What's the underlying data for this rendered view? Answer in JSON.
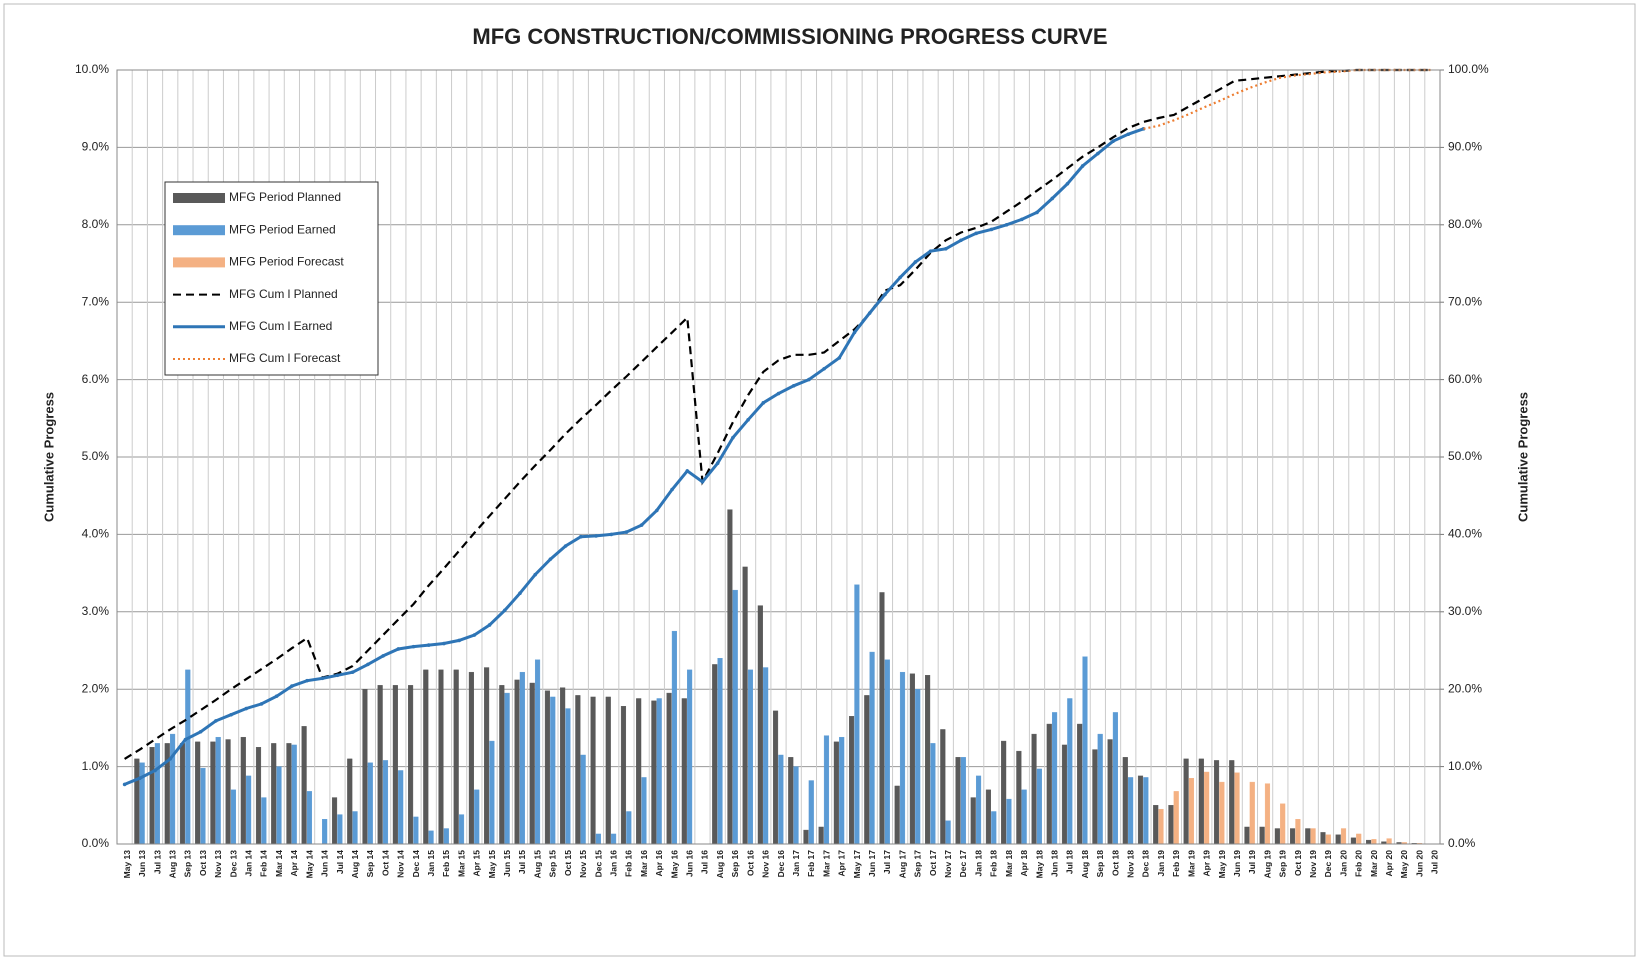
{
  "chart_data": {
    "type": "combo",
    "title": "MFG CONSTRUCTION/COMMISSIONING PROGRESS CURVE",
    "ylabel": "Cumulative Progress",
    "y2label": "Cumulative Progress",
    "grid": true,
    "legend_position": "upper left",
    "categories": [
      "May 13",
      "Jun 13",
      "Jul 13",
      "Aug 13",
      "Sep 13",
      "Oct 13",
      "Nov 13",
      "Dec 13",
      "Jan 14",
      "Feb 14",
      "Mar 14",
      "Apr 14",
      "May 14",
      "Jun 14",
      "Jul 14",
      "Aug 14",
      "Sep 14",
      "Oct 14",
      "Nov 14",
      "Dec 14",
      "Jan 15",
      "Feb 15",
      "Mar 15",
      "Apr 15",
      "May 15",
      "Jun 15",
      "Jul 15",
      "Aug 15",
      "Sep 15",
      "Oct 15",
      "Nov 15",
      "Dec 15",
      "Jan 16",
      "Feb 16",
      "Mar 16",
      "Apr 16",
      "May 16",
      "Jun 16",
      "Jul 16",
      "Aug 16",
      "Sep 16",
      "Oct 16",
      "Nov 16",
      "Dec 16",
      "Jan 17",
      "Feb 17",
      "Mar 17",
      "Apr 17",
      "May 17",
      "Jun 17",
      "Jul 17",
      "Aug 17",
      "Sep 17",
      "Oct 17",
      "Nov 17",
      "Dec 17",
      "Jan 18",
      "Feb 18",
      "Mar 18",
      "Apr 18",
      "May 18",
      "Jun 18",
      "Jul 18",
      "Aug 18",
      "Sep 18",
      "Oct 18",
      "Nov 18",
      "Dec 18",
      "Jan 19",
      "Feb 19",
      "Mar 19",
      "Apr 19",
      "May 19",
      "Jun 19",
      "Jul 19",
      "Aug 19",
      "Sep 19",
      "Oct 19",
      "Nov 19",
      "Dec 19",
      "Jan 20",
      "Feb 20",
      "Mar 20",
      "Apr 20",
      "May 20",
      "Jun 20",
      "Jul 20"
    ],
    "ylim": [
      0,
      10
    ],
    "yticks": [
      {
        "value": 0,
        "label": "0.0%"
      },
      {
        "value": 1,
        "label": "1.0%"
      },
      {
        "value": 2,
        "label": "2.0%"
      },
      {
        "value": 3,
        "label": "3.0%"
      },
      {
        "value": 4,
        "label": "4.0%"
      },
      {
        "value": 5,
        "label": "5.0%"
      },
      {
        "value": 6,
        "label": "6.0%"
      },
      {
        "value": 7,
        "label": "7.0%"
      },
      {
        "value": 8,
        "label": "8.0%"
      },
      {
        "value": 9,
        "label": "9.0%"
      },
      {
        "value": 10,
        "label": "10.0%"
      }
    ],
    "y2lim": [
      0,
      100
    ],
    "y2ticks": [
      {
        "value": 0,
        "label": "0.0%"
      },
      {
        "value": 10,
        "label": "10.0%"
      },
      {
        "value": 20,
        "label": "20.0%"
      },
      {
        "value": 30,
        "label": "30.0%"
      },
      {
        "value": 40,
        "label": "40.0%"
      },
      {
        "value": 50,
        "label": "50.0%"
      },
      {
        "value": 60,
        "label": "60.0%"
      },
      {
        "value": 70,
        "label": "70.0%"
      },
      {
        "value": 80,
        "label": "80.0%"
      },
      {
        "value": 90,
        "label": "90.0%"
      },
      {
        "value": 100,
        "label": "100.0%"
      }
    ],
    "series": [
      {
        "name": "MFG Period Planned",
        "type": "bar",
        "color": "#595959",
        "values": [
          0,
          1.1,
          1.25,
          1.3,
          1.3,
          1.32,
          1.32,
          1.35,
          1.38,
          1.25,
          1.3,
          1.3,
          1.52,
          0,
          0.6,
          1.1,
          2.0,
          2.05,
          2.05,
          2.05,
          2.25,
          2.25,
          2.25,
          2.22,
          2.28,
          2.05,
          2.12,
          2.08,
          1.98,
          2.02,
          1.92,
          1.9,
          1.9,
          1.78,
          1.88,
          1.85,
          1.95,
          1.88,
          0,
          2.32,
          4.32,
          3.58,
          3.08,
          1.72,
          1.12,
          0.18,
          0.22,
          1.32,
          1.65,
          1.92,
          3.25,
          0.75,
          2.2,
          2.18,
          1.48,
          1.12,
          0.6,
          0.7,
          1.33,
          1.2,
          1.42,
          1.55,
          1.28,
          1.55,
          1.22,
          1.35,
          1.12,
          0.88,
          0.5,
          0.5,
          1.1,
          1.1,
          1.08,
          1.08,
          0.22,
          0.22,
          0.2,
          0.2,
          0.2,
          0.15,
          0.12,
          0.08,
          0.05,
          0.03,
          0.02,
          0.01,
          0
        ]
      },
      {
        "name": "MFG Period Earned",
        "type": "bar",
        "color": "#5b9bd5",
        "values": [
          0,
          1.05,
          1.3,
          1.42,
          2.25,
          0.98,
          1.38,
          0.7,
          0.88,
          0.6,
          1.0,
          1.28,
          0.68,
          0.32,
          0.38,
          0.42,
          1.05,
          1.08,
          0.95,
          0.35,
          0.17,
          0.2,
          0.38,
          0.7,
          1.33,
          1.95,
          2.22,
          2.38,
          1.9,
          1.75,
          1.15,
          0.13,
          0.13,
          0.42,
          0.86,
          1.88,
          2.75,
          2.25,
          0,
          2.4,
          3.28,
          2.25,
          2.28,
          1.15,
          1.0,
          0.82,
          1.4,
          1.38,
          3.35,
          2.48,
          2.38,
          2.22,
          2.0,
          1.3,
          0.3,
          1.12,
          0.88,
          0.42,
          0.58,
          0.7,
          0.97,
          1.7,
          1.88,
          2.42,
          1.42,
          1.7,
          0.86,
          0.86,
          null,
          null,
          null,
          null,
          null,
          null,
          null,
          null,
          null,
          null,
          null,
          null,
          null,
          null,
          null,
          null,
          null,
          null,
          null
        ]
      },
      {
        "name": "MFG Period Forecast",
        "type": "bar",
        "color": "#f4b183",
        "values": [
          null,
          null,
          null,
          null,
          null,
          null,
          null,
          null,
          null,
          null,
          null,
          null,
          null,
          null,
          null,
          null,
          null,
          null,
          null,
          null,
          null,
          null,
          null,
          null,
          null,
          null,
          null,
          null,
          null,
          null,
          null,
          null,
          null,
          null,
          null,
          null,
          null,
          null,
          null,
          null,
          null,
          null,
          null,
          null,
          null,
          null,
          null,
          null,
          null,
          null,
          null,
          null,
          null,
          null,
          null,
          null,
          null,
          null,
          null,
          null,
          null,
          null,
          null,
          null,
          null,
          null,
          null,
          null,
          0.45,
          0.68,
          0.85,
          0.93,
          0.8,
          0.92,
          0.8,
          0.78,
          0.52,
          0.32,
          0.2,
          0.12,
          0.2,
          0.13,
          0.06,
          0.07,
          0.02,
          0.01,
          0
        ]
      },
      {
        "name": "MFG Cum l Planned",
        "type": "line",
        "axis": "y2",
        "color": "#000000",
        "dash": "dashed",
        "values": [
          11,
          12.2,
          13.5,
          14.8,
          16,
          17.3,
          18.6,
          20,
          21.3,
          22.6,
          23.9,
          25.3,
          26.6,
          21.5,
          22,
          23,
          25,
          27,
          29,
          31,
          33.4,
          35.6,
          37.9,
          40.2,
          42.4,
          44.6,
          46.8,
          48.9,
          50.9,
          53,
          54.9,
          56.7,
          58.6,
          60.4,
          62.3,
          64.2,
          66.1,
          68,
          46.8,
          50.5,
          54.5,
          58,
          61,
          62.5,
          63.2,
          63.2,
          63.5,
          65,
          66.5,
          68.5,
          71.5,
          72.2,
          74.2,
          76.4,
          78,
          79,
          79.6,
          80.4,
          81.7,
          83,
          84.4,
          85.8,
          87.3,
          88.8,
          90,
          91.3,
          92.5,
          93.3,
          93.8,
          94.2,
          95.3,
          96.4,
          97.5,
          98.6,
          98.8,
          99,
          99.2,
          99.4,
          99.6,
          99.8,
          99.9,
          100,
          100,
          100,
          100,
          100,
          100
        ]
      },
      {
        "name": "MFG Cum l Earned",
        "type": "line",
        "axis": "y2",
        "color": "#2e75b6",
        "dash": "solid",
        "values": [
          7.7,
          8.5,
          9.5,
          11,
          13.5,
          14.5,
          15.9,
          16.7,
          17.5,
          18.1,
          19.1,
          20.4,
          21.1,
          21.4,
          21.8,
          22.2,
          23.2,
          24.3,
          25.2,
          25.5,
          25.7,
          25.9,
          26.3,
          27,
          28.3,
          30.2,
          32.4,
          34.8,
          36.8,
          38.5,
          39.7,
          39.8,
          40,
          40.3,
          41.2,
          43.1,
          45.8,
          48.2,
          46.8,
          49.2,
          52.5,
          54.8,
          57,
          58.2,
          59.2,
          60,
          61.4,
          62.8,
          66.1,
          68.6,
          71,
          73.2,
          75.2,
          76.6,
          76.9,
          78,
          78.9,
          79.4,
          80,
          80.7,
          81.6,
          83.4,
          85.3,
          87.6,
          89.2,
          90.8,
          91.7,
          92.4,
          null,
          null,
          null,
          null,
          null,
          null,
          null,
          null,
          null,
          null,
          null,
          null,
          null,
          null,
          null,
          null,
          null,
          null,
          null
        ]
      },
      {
        "name": "MFG Cum l Forecast",
        "type": "line",
        "axis": "y2",
        "color": "#ed7d31",
        "dash": "dotted",
        "values": [
          null,
          null,
          null,
          null,
          null,
          null,
          null,
          null,
          null,
          null,
          null,
          null,
          null,
          null,
          null,
          null,
          null,
          null,
          null,
          null,
          null,
          null,
          null,
          null,
          null,
          null,
          null,
          null,
          null,
          null,
          null,
          null,
          null,
          null,
          null,
          null,
          null,
          null,
          null,
          null,
          null,
          null,
          null,
          null,
          null,
          null,
          null,
          null,
          null,
          null,
          null,
          null,
          null,
          null,
          null,
          null,
          null,
          null,
          null,
          null,
          null,
          null,
          null,
          null,
          null,
          null,
          null,
          92.4,
          92.8,
          93.5,
          94.3,
          95.2,
          96,
          96.9,
          97.7,
          98.4,
          99,
          99.3,
          99.5,
          99.7,
          99.8,
          100,
          100,
          100,
          100,
          100,
          100
        ]
      }
    ]
  }
}
